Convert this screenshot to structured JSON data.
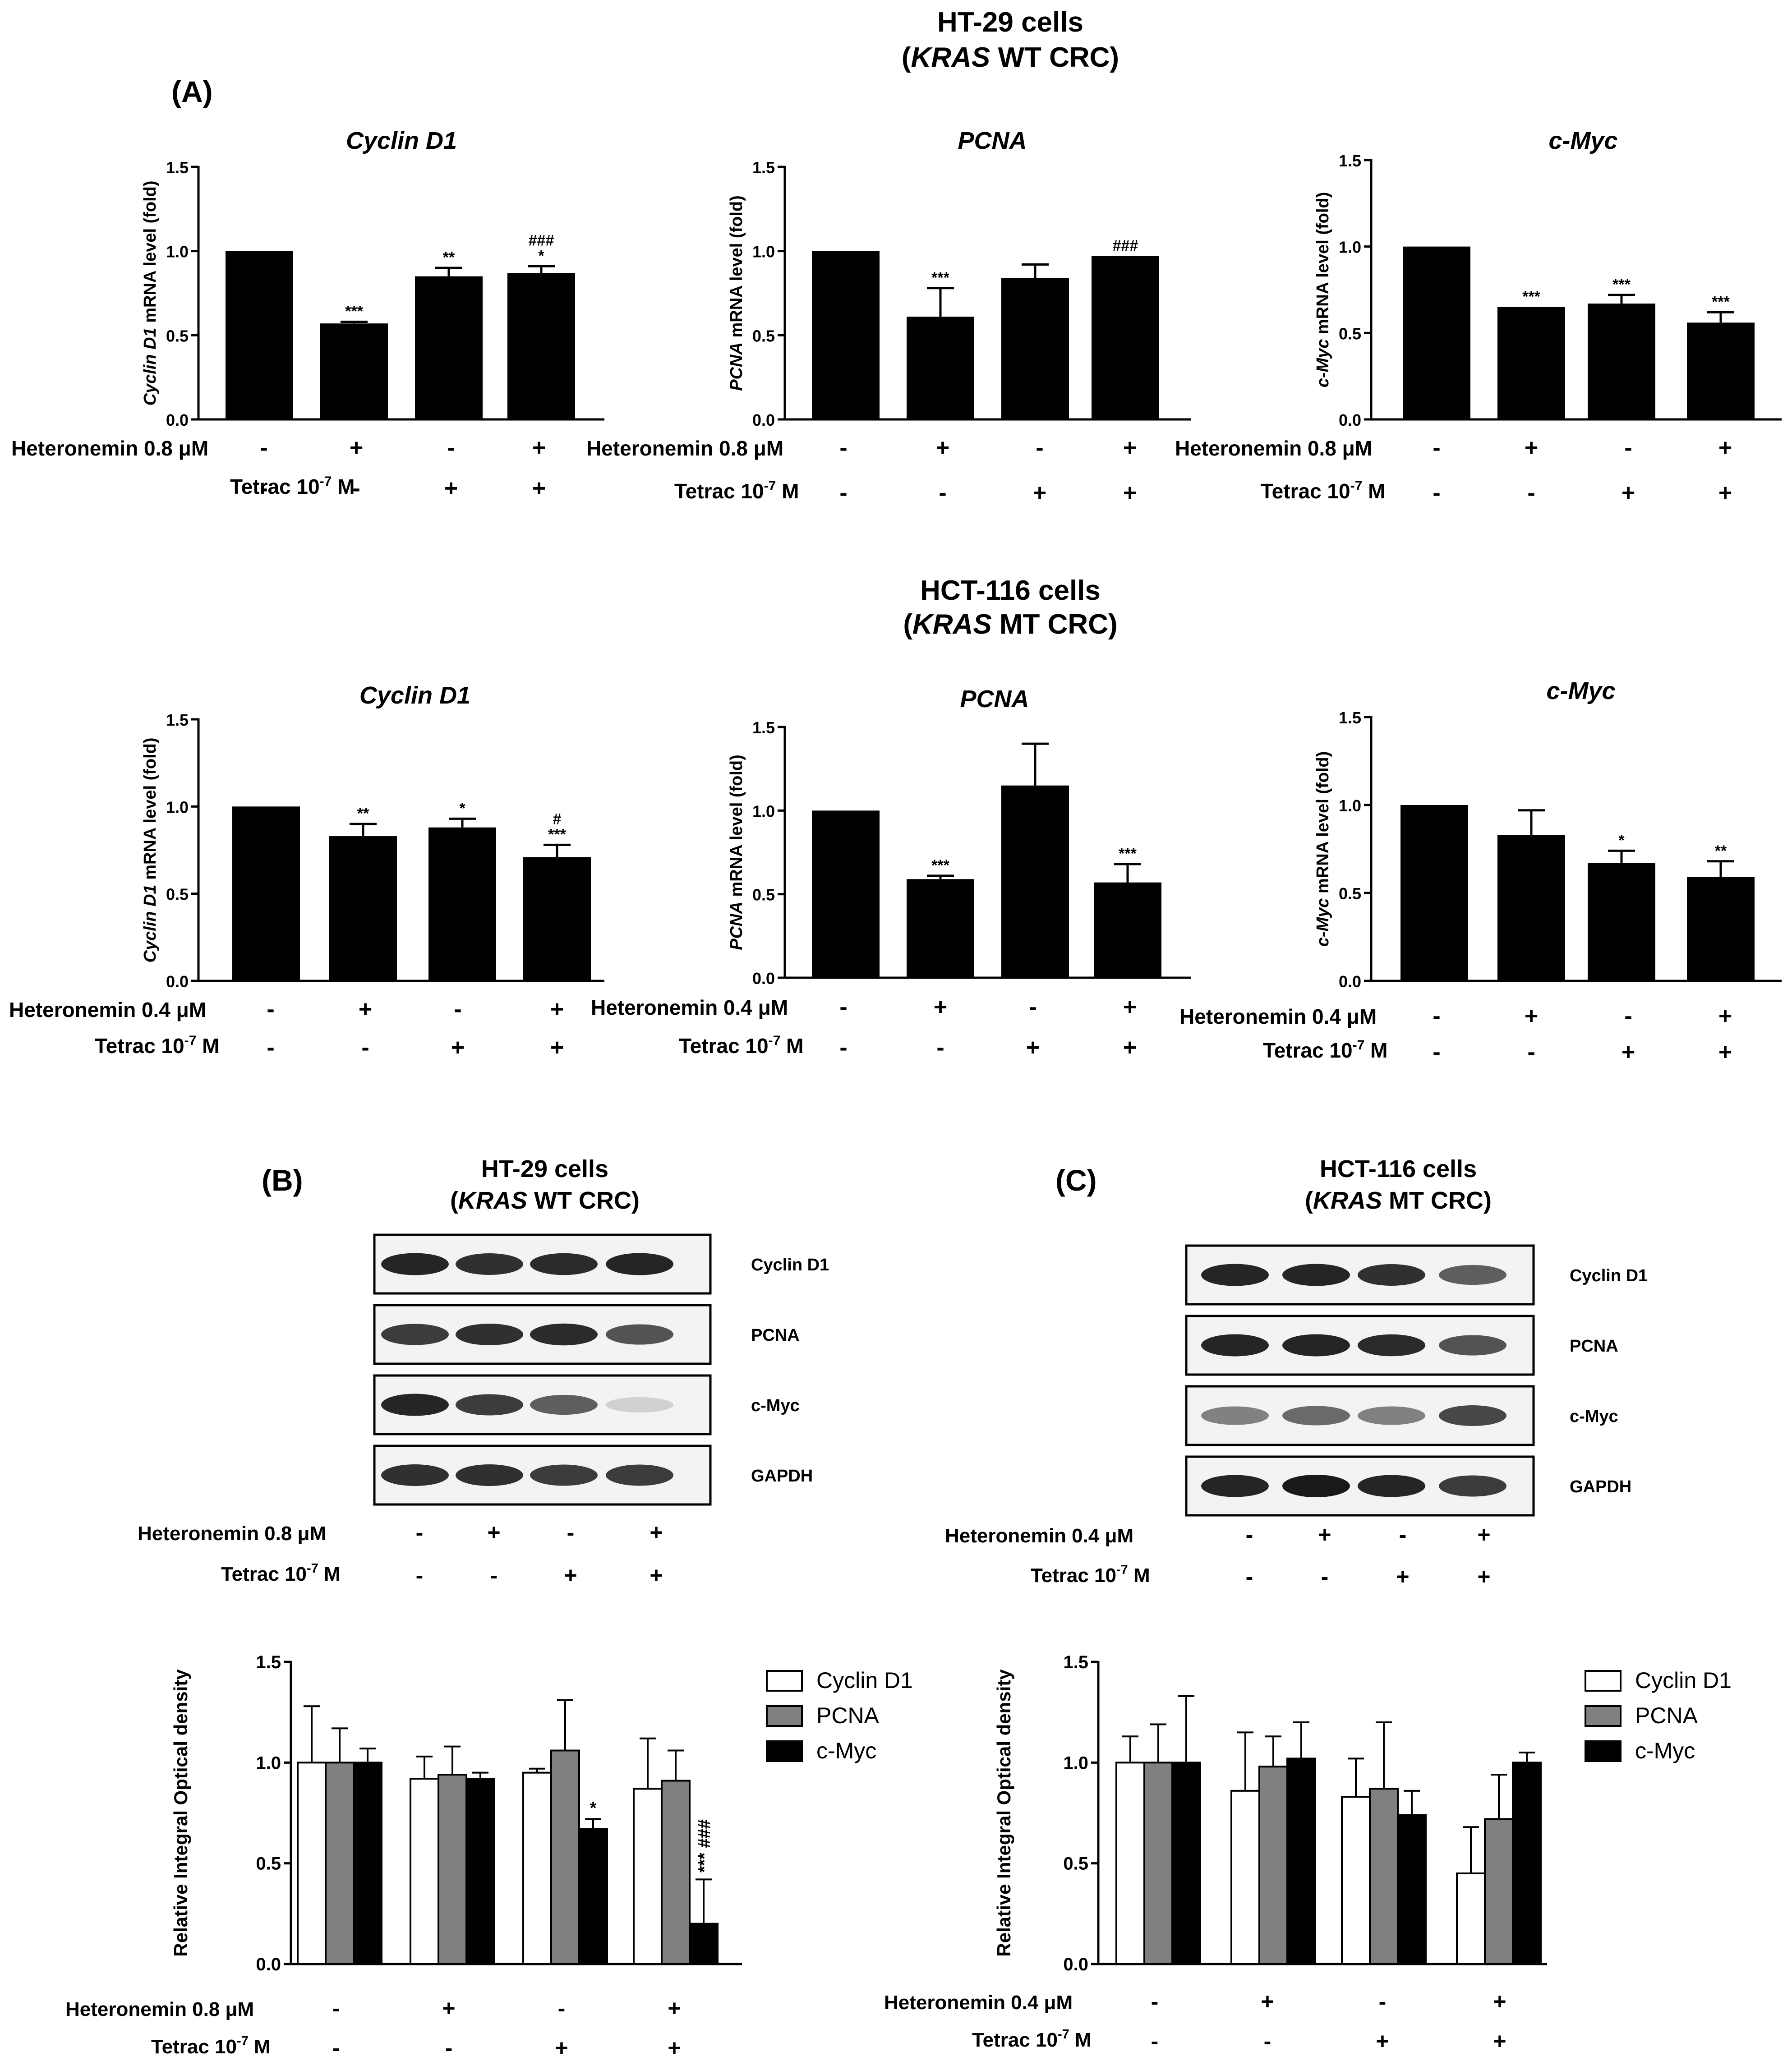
{
  "figure": {
    "sectionA_header": {
      "line1": "HT-29 cells",
      "line2_italic": "KRAS",
      "line2_rest": " WT CRC)",
      "line2_open": "("
    },
    "sectionA2_header": {
      "line1": "HCT-116 cells",
      "line2_italic": "KRAS",
      "line2_rest": " MT CRC)",
      "line2_open": "("
    },
    "panelA_label": "(A)",
    "panelB_label": "(B)",
    "panelC_label": "(C)",
    "panelB_header": {
      "line1": "HT-29 cells",
      "line2_italic": "KRAS",
      "line2_rest": " WT CRC)",
      "line2_open": "("
    },
    "panelC_header": {
      "line1": "HCT-116 cells",
      "line2_italic": "KRAS",
      "line2_rest": " MT CRC)",
      "line2_open": "("
    }
  },
  "treatment_labels": {
    "heteronemin_08": "Heteronemin  0.8  μM",
    "heteronemin_04": "Heteronemin  0.4  μM",
    "tetrac_prefix": "Tetrac 10",
    "tetrac_exp": "-7",
    "tetrac_suffix": " M",
    "heteronemin_signs": [
      "-",
      "+",
      "-",
      "+"
    ],
    "tetrac_signs": [
      "-",
      "-",
      "+",
      "+"
    ]
  },
  "blots": {
    "panelB": {
      "bands": [
        "Cyclin D1",
        "PCNA",
        "c-Myc",
        "GAPDH"
      ],
      "intensity": [
        [
          0.95,
          0.9,
          0.92,
          0.95
        ],
        [
          0.85,
          0.9,
          0.92,
          0.75
        ],
        [
          0.95,
          0.85,
          0.7,
          0.2
        ],
        [
          0.9,
          0.9,
          0.85,
          0.85
        ]
      ]
    },
    "panelC": {
      "bands": [
        "Cyclin D1",
        "PCNA",
        "c-Myc",
        "GAPDH"
      ],
      "intensity": [
        [
          0.95,
          0.95,
          0.9,
          0.7
        ],
        [
          0.95,
          0.95,
          0.92,
          0.75
        ],
        [
          0.55,
          0.65,
          0.55,
          0.8
        ],
        [
          0.95,
          1.0,
          0.95,
          0.85
        ]
      ]
    }
  },
  "chart_data": [
    {
      "id": "a-ht29-cyclin",
      "type": "bar",
      "title": "Cyclin D1",
      "ylabel_italic": "Cyclin D1",
      "ylabel_rest": " mRNA level (fold)",
      "ylim": [
        0,
        1.5
      ],
      "yticks": [
        "0.0",
        "0.5",
        "1.0",
        "1.5"
      ],
      "values": [
        1.0,
        0.57,
        0.85,
        0.87
      ],
      "errors": [
        0,
        0.01,
        0.05,
        0.04
      ],
      "annotations": [
        [
          ""
        ],
        [
          "***"
        ],
        [
          "**"
        ],
        [
          "*",
          "###"
        ]
      ]
    },
    {
      "id": "a-ht29-pcna",
      "type": "bar",
      "title": "PCNA",
      "ylabel_italic": "PCNA",
      "ylabel_rest": " mRNA level (fold)",
      "ylim": [
        0,
        1.5
      ],
      "yticks": [
        "0.0",
        "0.5",
        "1.0",
        "1.5"
      ],
      "values": [
        1.0,
        0.61,
        0.84,
        0.97
      ],
      "errors": [
        0,
        0.17,
        0.08,
        0.0
      ],
      "annotations": [
        [
          ""
        ],
        [
          "***"
        ],
        [
          ""
        ],
        [
          "###"
        ]
      ]
    },
    {
      "id": "a-ht29-cmyc",
      "type": "bar",
      "title": "c-Myc",
      "ylabel_italic": "c-Myc",
      "ylabel_rest": " mRNA level (fold)",
      "ylim": [
        0,
        1.5
      ],
      "yticks": [
        "0.0",
        "0.5",
        "1.0",
        "1.5"
      ],
      "values": [
        1.0,
        0.65,
        0.67,
        0.56
      ],
      "errors": [
        0,
        0.0,
        0.05,
        0.06
      ],
      "annotations": [
        [
          ""
        ],
        [
          "***"
        ],
        [
          "***"
        ],
        [
          "***"
        ]
      ]
    },
    {
      "id": "a-hct-cyclin",
      "type": "bar",
      "title": "Cyclin D1",
      "ylabel_italic": "Cyclin D1",
      "ylabel_rest": " mRNA level (fold)",
      "ylim": [
        0,
        1.5
      ],
      "yticks": [
        "0.0",
        "0.5",
        "1.0",
        "1.5"
      ],
      "values": [
        1.0,
        0.83,
        0.88,
        0.71
      ],
      "errors": [
        0,
        0.07,
        0.05,
        0.07
      ],
      "annotations": [
        [
          ""
        ],
        [
          "**"
        ],
        [
          "*"
        ],
        [
          "***",
          "#"
        ]
      ]
    },
    {
      "id": "a-hct-pcna",
      "type": "bar",
      "title": "PCNA",
      "ylabel_italic": "PCNA",
      "ylabel_rest": " mRNA level (fold)",
      "ylim": [
        0,
        1.5
      ],
      "yticks": [
        "0.0",
        "0.5",
        "1.0",
        "1.5"
      ],
      "values": [
        1.0,
        0.59,
        1.15,
        0.57
      ],
      "errors": [
        0,
        0.02,
        0.25,
        0.11
      ],
      "annotations": [
        [
          ""
        ],
        [
          "***"
        ],
        [
          ""
        ],
        [
          "***"
        ]
      ]
    },
    {
      "id": "a-hct-cmyc",
      "type": "bar",
      "title": "c-Myc",
      "ylabel_italic": "c-Myc",
      "ylabel_rest": " mRNA level (fold)",
      "ylim": [
        0,
        1.5
      ],
      "yticks": [
        "0.0",
        "0.5",
        "1.0",
        "1.5"
      ],
      "values": [
        1.0,
        0.83,
        0.67,
        0.59
      ],
      "errors": [
        0,
        0.14,
        0.07,
        0.09
      ],
      "annotations": [
        [
          ""
        ],
        [
          ""
        ],
        [
          "*"
        ],
        [
          "**"
        ]
      ]
    },
    {
      "id": "b-density",
      "type": "bar",
      "ylabel": "Relative Integral Optical density",
      "ylim": [
        0,
        1.5
      ],
      "yticks": [
        "0.0",
        "0.5",
        "1.0",
        "1.5"
      ],
      "legend": [
        "Cyclin D1",
        "PCNA",
        "c-Myc"
      ],
      "series": [
        {
          "name": "Cyclin D1",
          "color": "#ffffff",
          "values": [
            1.0,
            0.92,
            0.95,
            0.87
          ],
          "errors": [
            0.28,
            0.11,
            0.02,
            0.25
          ]
        },
        {
          "name": "PCNA",
          "color": "#808080",
          "values": [
            1.0,
            0.94,
            1.06,
            0.91
          ],
          "errors": [
            0.17,
            0.14,
            0.25,
            0.15
          ]
        },
        {
          "name": "c-Myc",
          "color": "#000000",
          "values": [
            1.0,
            0.92,
            0.67,
            0.2
          ],
          "errors": [
            0.07,
            0.03,
            0.05,
            0.22
          ]
        }
      ],
      "annotations": [
        {
          "group": 2,
          "series": 2,
          "text": "*",
          "rotated": false
        },
        {
          "group": 3,
          "series": 2,
          "text": "*** ###",
          "rotated": true
        }
      ]
    },
    {
      "id": "c-density",
      "type": "bar",
      "ylabel": "Relative Integral Optical density",
      "ylim": [
        0,
        1.5
      ],
      "yticks": [
        "0.0",
        "0.5",
        "1.0",
        "1.5"
      ],
      "legend": [
        "Cyclin D1",
        "PCNA",
        "c-Myc"
      ],
      "series": [
        {
          "name": "Cyclin D1",
          "color": "#ffffff",
          "values": [
            1.0,
            0.86,
            0.83,
            0.45
          ],
          "errors": [
            0.13,
            0.29,
            0.19,
            0.23
          ]
        },
        {
          "name": "PCNA",
          "color": "#808080",
          "values": [
            1.0,
            0.98,
            0.87,
            0.72
          ],
          "errors": [
            0.19,
            0.15,
            0.33,
            0.22
          ]
        },
        {
          "name": "c-Myc",
          "color": "#000000",
          "values": [
            1.0,
            1.02,
            0.74,
            1.0
          ],
          "errors": [
            0.33,
            0.18,
            0.12,
            0.05
          ]
        }
      ],
      "annotations": []
    }
  ]
}
